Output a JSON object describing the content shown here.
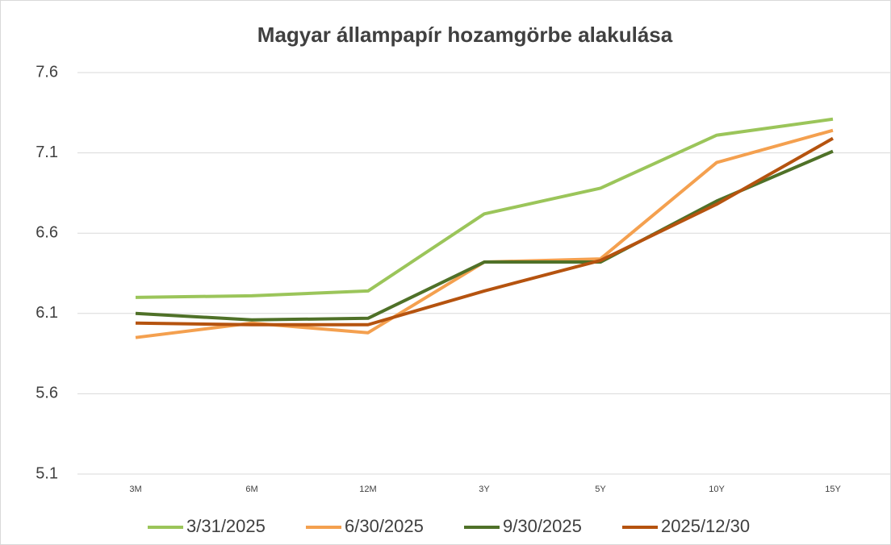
{
  "chart_data": {
    "type": "line",
    "title": "Magyar állampapír hozamgörbe alakulása",
    "categories": [
      "3M",
      "6M",
      "12M",
      "3Y",
      "5Y",
      "10Y",
      "15Y"
    ],
    "series": [
      {
        "name": "3/31/2025",
        "color": "#9bc55a",
        "values": [
          6.2,
          6.21,
          6.24,
          6.72,
          6.88,
          7.21,
          7.31
        ]
      },
      {
        "name": "6/30/2025",
        "color": "#f4a04f",
        "values": [
          5.95,
          6.04,
          5.98,
          6.42,
          6.44,
          7.04,
          7.24
        ]
      },
      {
        "name": "9/30/2025",
        "color": "#4f7128",
        "values": [
          6.1,
          6.06,
          6.07,
          6.42,
          6.42,
          6.8,
          7.11
        ]
      },
      {
        "name": "2025/12/30",
        "color": "#b5530f",
        "values": [
          6.04,
          6.03,
          6.03,
          6.24,
          6.43,
          6.78,
          7.19
        ]
      }
    ],
    "ylim": [
      5.1,
      7.6
    ],
    "yticks": [
      5.1,
      5.6,
      6.1,
      6.6,
      7.1,
      7.6
    ],
    "grid": true
  }
}
